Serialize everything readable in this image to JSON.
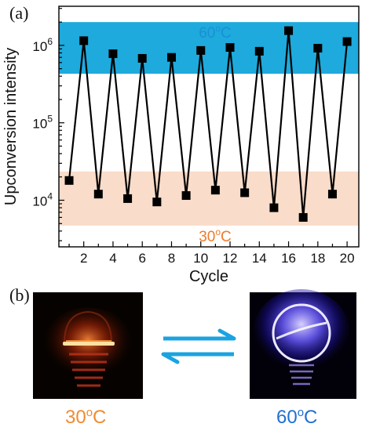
{
  "panel_a_label": "(a)",
  "panel_b_label": "(b)",
  "chart_data": {
    "type": "line",
    "xlabel": "Cycle",
    "ylabel": "Upconversion intensity",
    "yscale": "log",
    "xlim": [
      0.3,
      20.8
    ],
    "ylim": [
      2500,
      3200000
    ],
    "xticks": [
      2,
      4,
      6,
      8,
      10,
      12,
      14,
      16,
      18,
      20
    ],
    "yticks": [
      {
        "value": 10000,
        "label": "10",
        "exp": "4"
      },
      {
        "value": 100000,
        "label": "10",
        "exp": "5"
      },
      {
        "value": 1000000,
        "label": "10",
        "exp": "6"
      }
    ],
    "grid": false,
    "x": [
      1,
      2,
      3,
      4,
      5,
      6,
      7,
      8,
      9,
      10,
      11,
      12,
      13,
      14,
      15,
      16,
      17,
      18,
      19,
      20
    ],
    "y": [
      18000,
      1150000,
      12000,
      780000,
      10500,
      680000,
      9500,
      700000,
      11500,
      860000,
      13500,
      940000,
      12500,
      840000,
      8000,
      1550000,
      6000,
      920000,
      12000,
      1120000
    ],
    "bands": [
      {
        "label_main": "60",
        "label_sup": "o",
        "label_unit": "C",
        "range": [
          430000,
          2000000
        ],
        "color": "#1eaadc",
        "text_color": "#1a8fd6"
      },
      {
        "label_main": "30",
        "label_sup": "o",
        "label_unit": "C",
        "range": [
          4700,
          23500
        ],
        "color": "#f9dcc9",
        "text_color": "#f07a2a"
      }
    ],
    "marker_color": "#000000",
    "line_color": "#000000"
  },
  "photos": {
    "left_label_main": "30",
    "left_label_sup": "o",
    "left_label_unit": "C",
    "left_label_color": "#f28a2e",
    "right_label_main": "60",
    "right_label_sup": "o",
    "right_label_unit": "C",
    "right_label_color": "#2070d0",
    "arrow_color": "#1aa3e0"
  }
}
